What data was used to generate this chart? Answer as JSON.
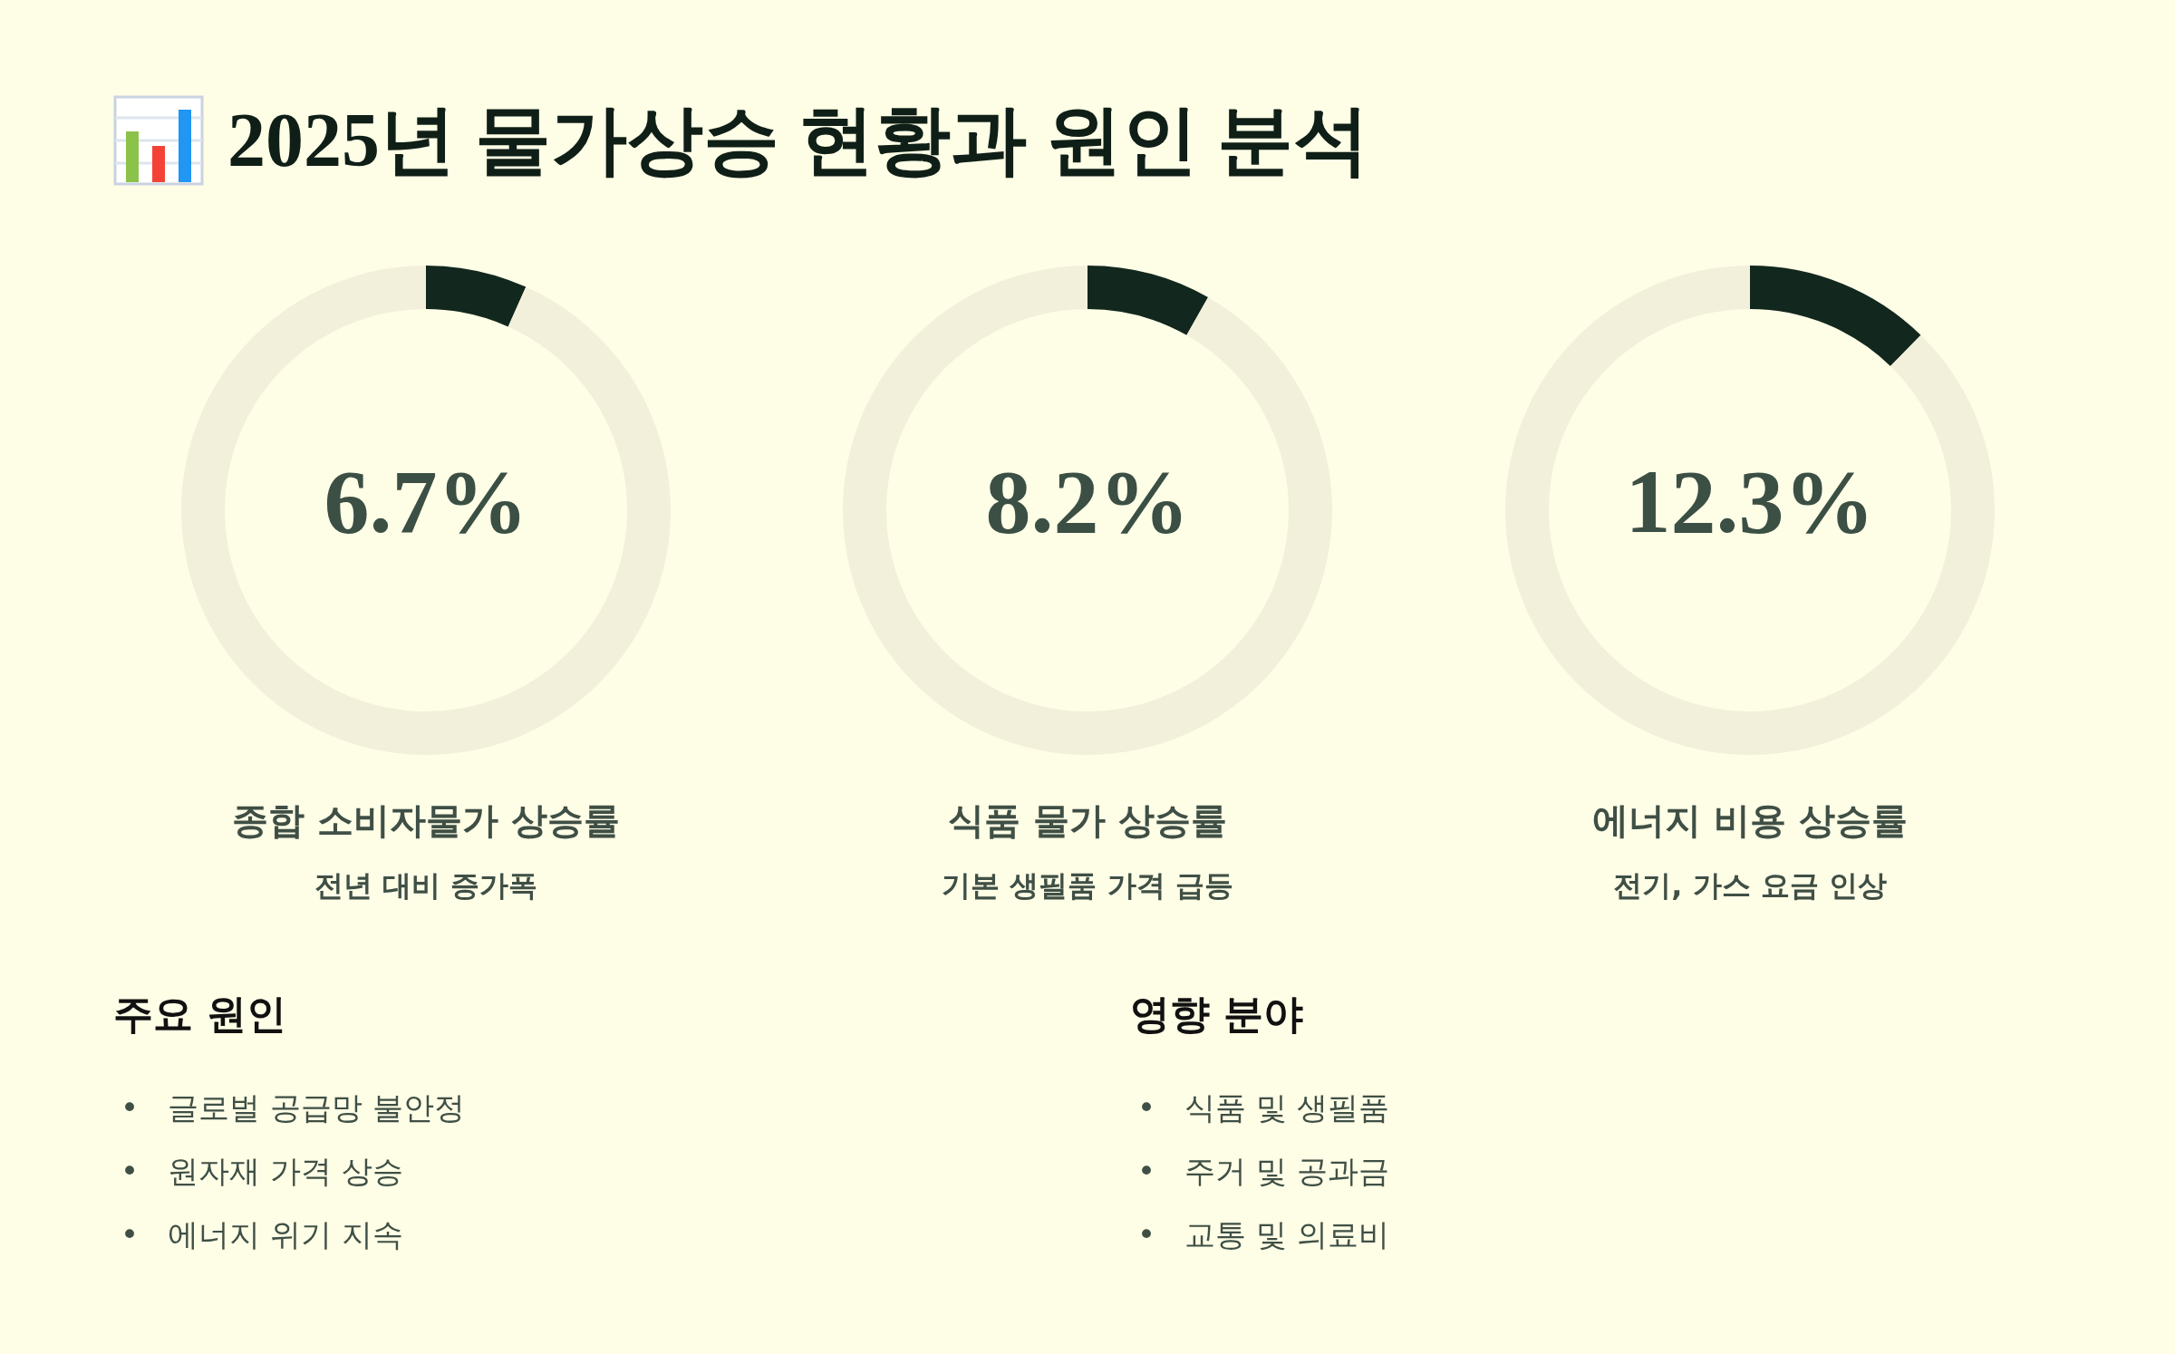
{
  "chart_data": [
    {
      "type": "other",
      "title": "2025년 물가상승 현황과 원인 분석"
    },
    {
      "type": "donut",
      "title": "종합 소비자물가 상승률",
      "subtitle": "전년 대비 증가폭",
      "categories": [
        null,
        null
      ],
      "values": [
        6.7,
        93.3
      ],
      "colors": [
        "#12271e",
        "#f2f0da"
      ],
      "annotations": [
        "6.7%"
      ]
    },
    {
      "type": "donut",
      "title": "식품 물가 상승률",
      "subtitle": "기본 생필품 가격 급등",
      "categories": [
        null,
        null
      ],
      "values": [
        8.2,
        91.8
      ],
      "colors": [
        "#12271e",
        "#f2f0da"
      ],
      "annotations": [
        "8.2%"
      ]
    },
    {
      "type": "donut",
      "title": "에너지 비용 상승률",
      "subtitle": "전기, 가스 요금 인상",
      "categories": [
        null,
        null
      ],
      "values": [
        12.3,
        87.7
      ],
      "colors": [
        "#12271e",
        "#f2f0da"
      ],
      "annotations": [
        "12.3%"
      ]
    },
    {
      "type": "other",
      "title": "주요 원인",
      "annotations": [
        "•   글로벌 공급망 불안정",
        "•   원자재 가격 상승",
        "•   에너지 위기 지속"
      ]
    },
    {
      "type": "other",
      "title": "영향 분야",
      "annotations": [
        "•   식품 및 생필품",
        "•   주거 및 공과금",
        "•   교통 및 의료비"
      ]
    }
  ]
}
